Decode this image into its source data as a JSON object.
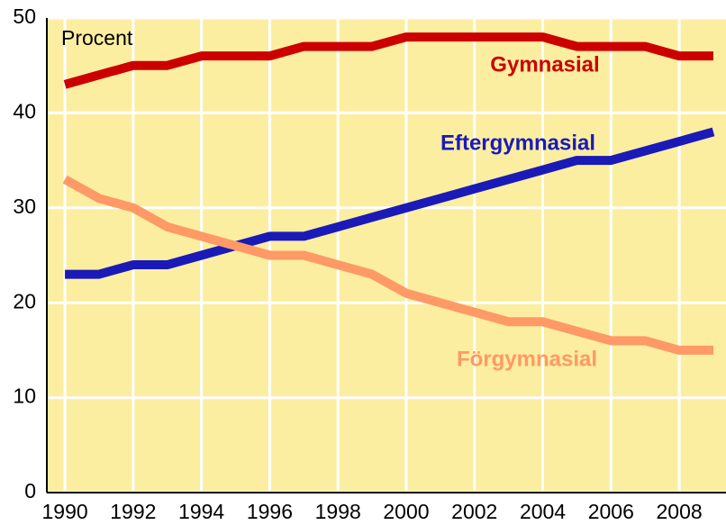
{
  "chart_data": {
    "type": "line",
    "y_label": "Procent",
    "x": [
      1990,
      1991,
      1992,
      1993,
      1994,
      1995,
      1996,
      1997,
      1998,
      1999,
      2000,
      2001,
      2002,
      2003,
      2004,
      2005,
      2006,
      2007,
      2008,
      2009
    ],
    "series": [
      {
        "name": "Gymnasial",
        "color": "#cc0000",
        "values": [
          43,
          44,
          45,
          45,
          46,
          46,
          46,
          47,
          47,
          47,
          48,
          48,
          48,
          48,
          48,
          47,
          47,
          47,
          46,
          46
        ]
      },
      {
        "name": "Eftergymnasial",
        "color": "#1a1ab8",
        "values": [
          23,
          23,
          24,
          24,
          25,
          26,
          27,
          27,
          28,
          29,
          30,
          31,
          32,
          33,
          34,
          35,
          35,
          36,
          37,
          38
        ]
      },
      {
        "name": "Förgymnasial",
        "color": "#ff9966",
        "values": [
          33,
          31,
          30,
          28,
          27,
          26,
          25,
          25,
          24,
          23,
          21,
          20,
          19,
          18,
          18,
          17,
          16,
          16,
          15,
          15
        ]
      }
    ],
    "xlim": [
      1989.47,
      2009.37
    ],
    "xticks": [
      1990,
      1992,
      1994,
      1996,
      1998,
      2000,
      2002,
      2004,
      2006,
      2008
    ],
    "ylim": [
      0,
      50
    ],
    "yticks": [
      0,
      10,
      20,
      30,
      40,
      50
    ],
    "grid": true,
    "background": "#fbeea0"
  }
}
